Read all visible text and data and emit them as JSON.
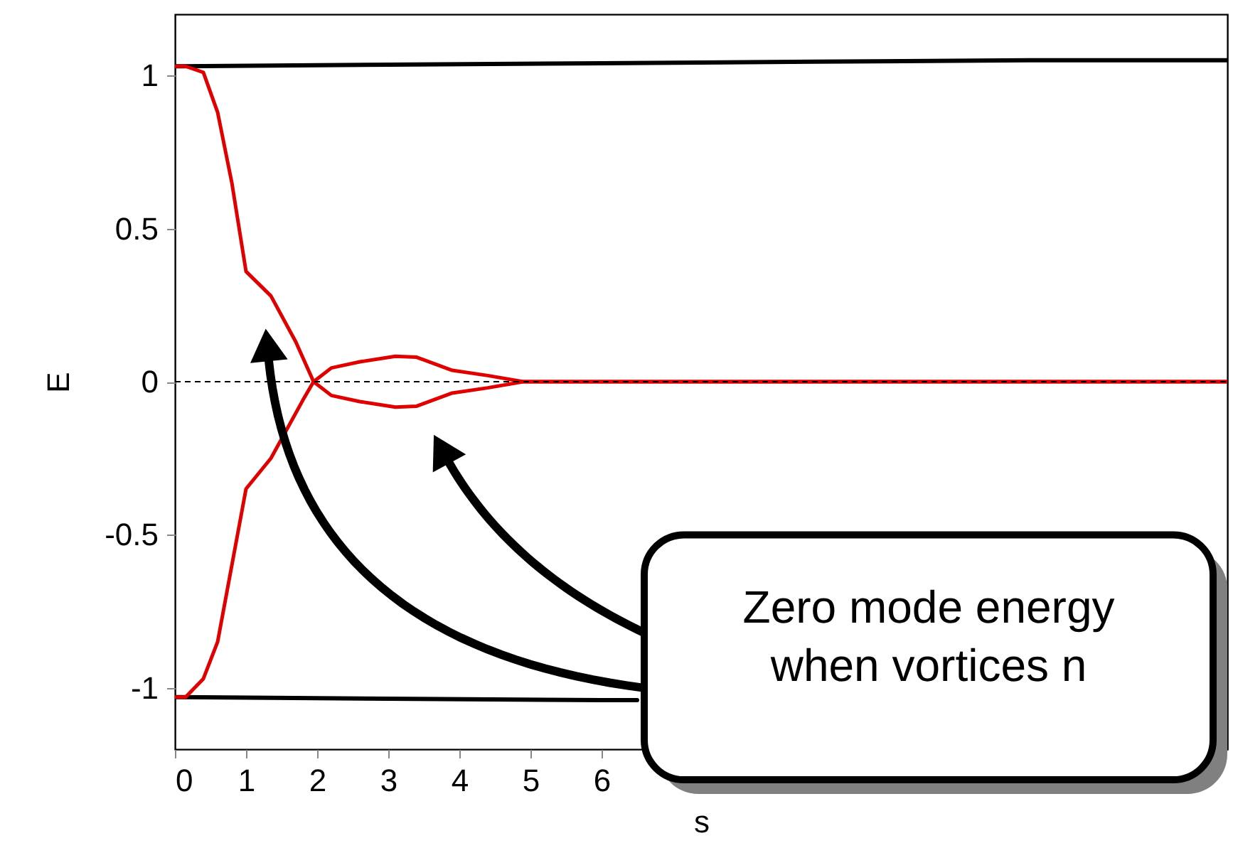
{
  "chart_data": {
    "type": "line",
    "xlabel": "s",
    "ylabel": "E",
    "xlim": [
      0,
      14.8
    ],
    "ylim": [
      -1.2,
      1.2
    ],
    "xticks": [
      0,
      1,
      2,
      3,
      4,
      5,
      6
    ],
    "yticks": [
      -1,
      -0.5,
      0,
      0.5,
      1
    ],
    "grid": false,
    "marker": "none",
    "line_style": "solid",
    "series": [
      {
        "color": "#000000",
        "x": [
          0,
          3,
          6,
          9,
          12,
          14.8
        ],
        "values": [
          1.03,
          1.035,
          1.04,
          1.045,
          1.05,
          1.05
        ]
      },
      {
        "color": "#000000",
        "x": [
          0,
          3,
          6,
          6.5
        ],
        "values": [
          -1.03,
          -1.035,
          -1.04,
          -1.04
        ]
      },
      {
        "color": "#e00000",
        "x": [
          0,
          0.15,
          0.4,
          0.6,
          0.8,
          1.0,
          1.35,
          1.7,
          1.95,
          2.2,
          2.6,
          3.1,
          3.4,
          3.9,
          4.4,
          4.9,
          5.5,
          8,
          11,
          14.8
        ],
        "values": [
          1.03,
          1.03,
          1.01,
          0.88,
          0.65,
          0.36,
          0.28,
          0.13,
          0.0,
          0.045,
          0.065,
          0.083,
          0.08,
          0.037,
          0.02,
          0.0,
          0.0,
          0.0,
          0.0,
          0.0
        ]
      },
      {
        "color": "#e00000",
        "x": [
          0,
          0.15,
          0.4,
          0.6,
          0.8,
          1.0,
          1.35,
          1.8,
          1.95,
          2.2,
          2.6,
          3.1,
          3.4,
          3.9,
          4.4,
          4.9,
          5.5,
          8,
          11,
          14.8
        ],
        "values": [
          -1.03,
          -1.03,
          -0.97,
          -0.85,
          -0.6,
          -0.35,
          -0.25,
          -0.06,
          0.0,
          -0.045,
          -0.065,
          -0.083,
          -0.08,
          -0.037,
          -0.02,
          0.0,
          0.0,
          0.0,
          0.0,
          0.0
        ]
      }
    ],
    "ref_lines": [
      {
        "axis": "y",
        "value": 0,
        "color": "#000000",
        "line_style": "dashed"
      }
    ],
    "annotations": [
      "Zero mode energy\nwhen vortices n"
    ]
  }
}
